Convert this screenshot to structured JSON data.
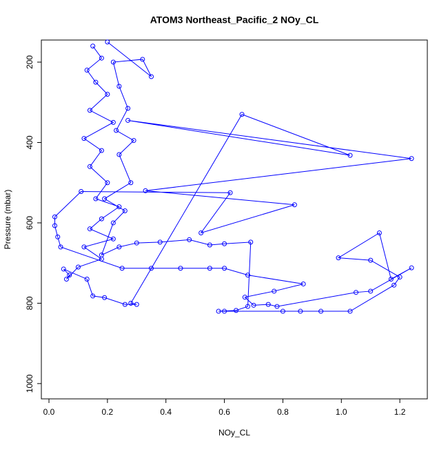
{
  "chart_data": {
    "type": "line",
    "title": "ATOM3 Northeast_Pacific_2 NOy_CL",
    "x_label": "NOy_CL",
    "y_label": "Pressure (mbar)",
    "color": "#0000ff",
    "markers": "circle",
    "x": [
      0.15,
      0.18,
      0.13,
      0.16,
      0.2,
      0.14,
      0.22,
      0.12,
      0.18,
      0.14,
      0.2,
      0.16,
      0.24,
      0.18,
      0.14,
      0.22,
      0.12,
      0.18,
      0.1,
      0.06,
      0.07,
      0.05,
      0.13,
      0.15,
      0.19,
      0.26,
      0.3,
      0.28,
      0.66,
      1.03,
      0.27,
      1.24,
      0.33,
      0.84,
      0.52,
      0.62,
      0.11,
      0.02,
      0.02,
      0.03,
      0.04,
      0.25,
      0.35,
      0.45,
      0.55,
      0.6,
      0.68,
      0.87,
      0.77,
      0.67,
      0.7,
      0.75,
      0.78,
      1.05,
      1.1,
      1.24,
      1.17,
      1.13,
      0.99,
      1.1,
      1.2,
      1.18,
      1.03,
      0.93,
      0.86,
      0.8,
      0.6,
      0.58,
      0.64,
      0.68,
      0.69,
      0.6,
      0.55,
      0.48,
      0.38,
      0.3,
      0.24,
      0.18,
      0.22,
      0.26,
      0.19,
      0.28,
      0.24,
      0.29,
      0.23,
      0.27,
      0.24,
      0.22,
      0.32,
      0.35,
      0.2
    ],
    "values": [
      160,
      190,
      220,
      250,
      280,
      320,
      350,
      390,
      420,
      460,
      500,
      540,
      560,
      590,
      615,
      640,
      660,
      690,
      710,
      740,
      730,
      715,
      740,
      782,
      786,
      803,
      803,
      800,
      330,
      432,
      345,
      440,
      520,
      555,
      625,
      525,
      522,
      585,
      607,
      635,
      660,
      713,
      713,
      713,
      713,
      713,
      730,
      752,
      770,
      785,
      805,
      803,
      808,
      773,
      770,
      712,
      740,
      625,
      687,
      693,
      735,
      755,
      820,
      820,
      820,
      820,
      820,
      820,
      818,
      808,
      648,
      652,
      655,
      642,
      648,
      650,
      660,
      680,
      600,
      570,
      540,
      500,
      430,
      395,
      370,
      315,
      260,
      200,
      193,
      236,
      150
    ],
    "xlim": [
      -0.026,
      1.294
    ],
    "ylim": [
      1038,
      145
    ],
    "xticks": [
      {
        "value": 0,
        "label": "0.0"
      },
      0.2,
      0.4,
      0.6,
      0.8,
      {
        "value": 1,
        "label": "1.0"
      },
      1.2
    ],
    "yticks": [
      200,
      400,
      600,
      800,
      1000
    ]
  }
}
